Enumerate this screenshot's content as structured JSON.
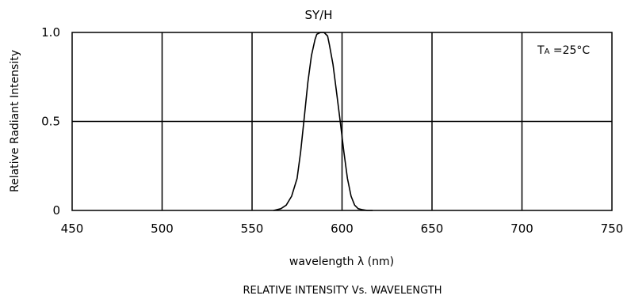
{
  "chart_data": {
    "type": "line",
    "title": "SY/H",
    "xlabel": "wavelength λ (nm)",
    "ylabel": "Relative Radiant Intensity",
    "caption": "RELATIVE INTENSITY Vs. WAVELENGTH",
    "annotation": {
      "main": "T",
      "subscript": "A",
      "rest": " =25°C"
    },
    "xlim": [
      450,
      750
    ],
    "ylim": [
      0,
      1.0
    ],
    "x_ticks": [
      450,
      500,
      550,
      600,
      650,
      700,
      750
    ],
    "x_tick_labels": [
      "450",
      "500",
      "550",
      "600",
      "650",
      "700",
      "750"
    ],
    "y_ticks": [
      0,
      0.5,
      1.0
    ],
    "y_tick_labels": [
      "0",
      "0.5",
      "1.0"
    ],
    "grid": true,
    "colors": {
      "line": "#000000",
      "grid": "#000000",
      "background": "#ffffff"
    },
    "series": [
      {
        "x": [
          562,
          566,
          569,
          572,
          575,
          577,
          579,
          581,
          583,
          585,
          586,
          588,
          590,
          592,
          593,
          595,
          597,
          599,
          601,
          603,
          605,
          607,
          609,
          611,
          614,
          617
        ],
        "y": [
          0.0,
          0.01,
          0.03,
          0.08,
          0.18,
          0.33,
          0.52,
          0.72,
          0.87,
          0.96,
          0.99,
          1.0,
          1.0,
          0.98,
          0.93,
          0.82,
          0.66,
          0.5,
          0.33,
          0.18,
          0.08,
          0.03,
          0.01,
          0.005,
          0.0,
          0.0
        ]
      }
    ]
  }
}
